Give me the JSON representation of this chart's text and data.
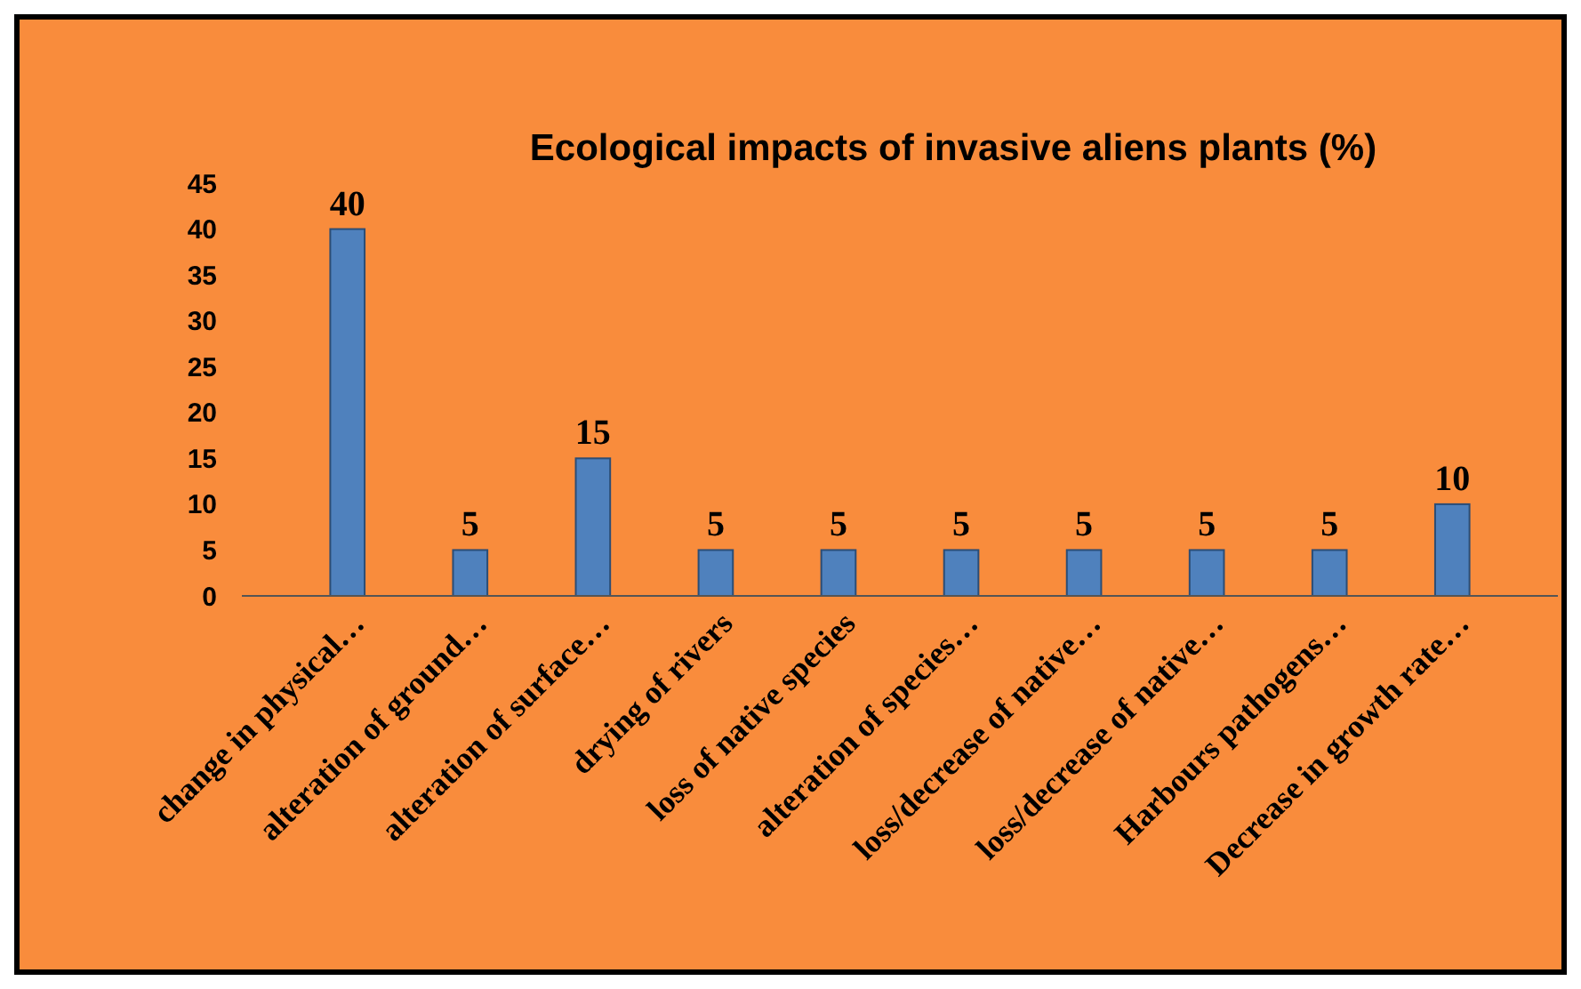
{
  "chart_data": {
    "type": "bar",
    "title": "Ecological impacts of invasive aliens plants (%)",
    "categories": [
      "change in physical…",
      "alteration of ground…",
      "alteration of surface…",
      "drying of rivers",
      "loss of native species",
      "alteration of species…",
      "loss/decrease of native…",
      "loss/decrease of native…",
      "Harbours pathogens…",
      "Decrease in growth rate…"
    ],
    "values": [
      40,
      5,
      15,
      5,
      5,
      5,
      5,
      5,
      5,
      10
    ],
    "color": "#4f81bd",
    "ylim": [
      0,
      45
    ],
    "yticks": [
      0,
      5,
      10,
      15,
      20,
      25,
      30,
      35,
      40,
      45
    ],
    "grid": false,
    "data_labels": true
  }
}
